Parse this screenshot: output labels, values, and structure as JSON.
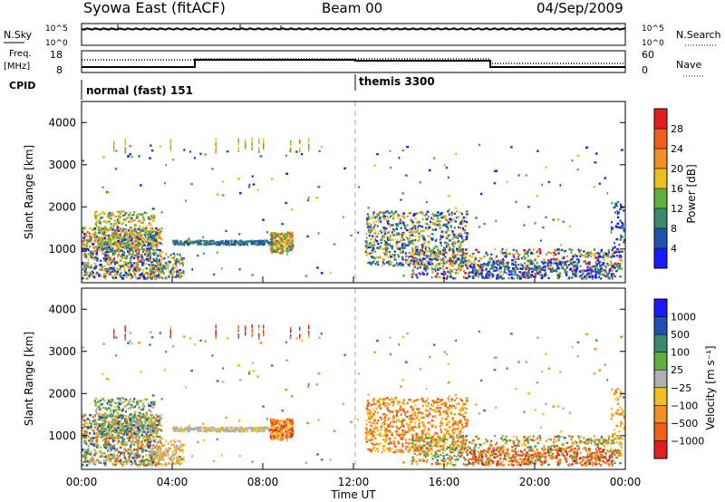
{
  "header": {
    "station": "Syowa East (fitACF)",
    "beam": "Beam 00",
    "date": "04/Sep/2009"
  },
  "top_panels": {
    "nsky_label": "N.Sky",
    "nsky_ticks": [
      "10^5",
      "10^0"
    ],
    "nsearch_label": "N.Search",
    "nsearch_ticks": [
      "10^5",
      "10^0"
    ],
    "freq_label_1": "Freq.",
    "freq_label_2": "[MHz]",
    "freq_ticks": [
      "18",
      "8"
    ],
    "nave_label": "Nave",
    "nave_ticks": [
      "60",
      "0"
    ],
    "cpid_label": "CPID",
    "cpid_segments": [
      "normal (fast) 151",
      "themis 3300"
    ]
  },
  "chart_data": [
    {
      "type": "heatmap",
      "title": "",
      "ylabel": "Slant Range [km]",
      "xlabel": "",
      "y_ticks": [
        "1000",
        "2000",
        "3000",
        "4000"
      ],
      "ylim": [
        200,
        4500
      ],
      "xlim": [
        0,
        24
      ],
      "grid": false,
      "colorbar": {
        "label": "Power [dB]",
        "ticks": [
          "4",
          "8",
          "12",
          "16",
          "20",
          "24",
          "28"
        ],
        "colors": [
          "#1a1aff",
          "#2050b0",
          "#3a8a70",
          "#60b040",
          "#e8c020",
          "#f09020",
          "#f06018",
          "#e02020"
        ]
      }
    },
    {
      "type": "heatmap",
      "title": "",
      "ylabel": "Slant Range [km]",
      "xlabel": "Time UT",
      "x_ticks": [
        "00:00",
        "04:00",
        "08:00",
        "12:00",
        "16:00",
        "20:00",
        "00:00"
      ],
      "y_ticks": [
        "1000",
        "2000",
        "3000",
        "4000"
      ],
      "ylim": [
        200,
        4500
      ],
      "xlim": [
        0,
        24
      ],
      "grid": false,
      "colorbar": {
        "label": "Velocity [m s⁻¹]",
        "ticks": [
          "1000",
          "500",
          "100",
          "25",
          "−25",
          "−100",
          "−500",
          "−1000"
        ],
        "colors": [
          "#1a1aff",
          "#2050b0",
          "#3a8a70",
          "#60b040",
          "#b0b0b0",
          "#f0c020",
          "#f09020",
          "#f06018",
          "#e02020"
        ]
      }
    }
  ]
}
